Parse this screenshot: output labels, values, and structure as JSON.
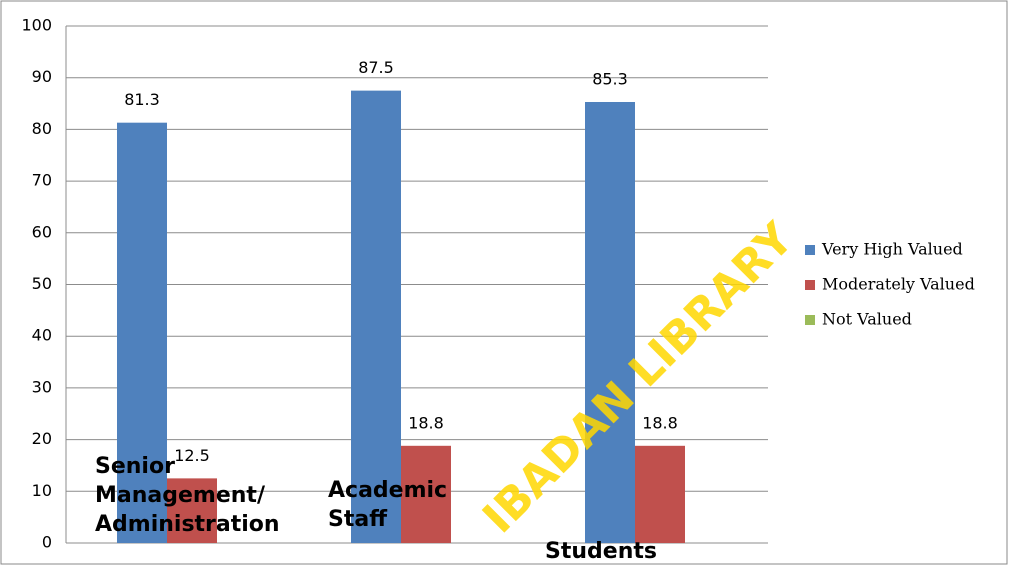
{
  "chart_data": {
    "type": "bar",
    "categories": [
      "Senior Management/ Administration",
      "Academic Staff",
      "Students"
    ],
    "series": [
      {
        "name": "Very High Valued",
        "color": "#4f81bd",
        "values": [
          81.3,
          87.5,
          85.3
        ]
      },
      {
        "name": "Moderately Valued",
        "color": "#c0504d",
        "values": [
          12.5,
          18.8,
          18.8
        ]
      },
      {
        "name": "Not Valued",
        "color": "#9bbb59",
        "values": [
          null,
          null,
          null
        ]
      }
    ],
    "ylim": [
      0,
      100
    ],
    "yticks": [
      0,
      10,
      20,
      30,
      40,
      50,
      60,
      70,
      80,
      90,
      100
    ],
    "grid": true,
    "legend": "right",
    "annotations": [
      "IBADAN LIBRARY"
    ]
  }
}
